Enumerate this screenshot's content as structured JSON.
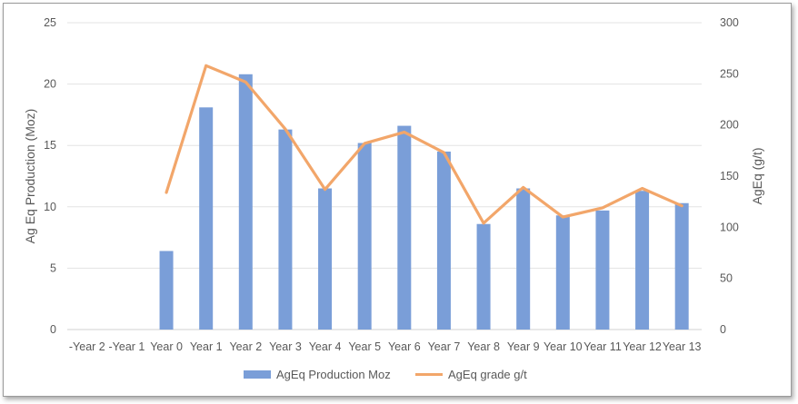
{
  "chart_data": {
    "type": "bar",
    "categories": [
      "-Year 2",
      "-Year 1",
      "Year 0",
      "Year 1",
      "Year 2",
      "Year 3",
      "Year 4",
      "Year 5",
      "Year 6",
      "Year 7",
      "Year 8",
      "Year 9",
      "Year 10",
      "Year 11",
      "Year 12",
      "Year 13"
    ],
    "series": [
      {
        "name": "AgEq Production Moz",
        "type": "bar",
        "axis": "left",
        "color": "#7A9ED8",
        "values": [
          0,
          0,
          6.4,
          18.1,
          20.8,
          16.3,
          11.5,
          15.2,
          16.6,
          14.5,
          8.6,
          11.5,
          9.3,
          9.7,
          11.3,
          10.3
        ]
      },
      {
        "name": "AgEq grade g/t",
        "type": "line",
        "axis": "right",
        "color": "#F2A66A",
        "values": [
          null,
          null,
          134,
          258,
          242,
          196,
          137,
          182,
          193,
          173,
          104,
          139,
          110,
          119,
          138,
          121
        ]
      }
    ],
    "title": "",
    "ylabel": "Ag Eq Production (Moz)",
    "y2label": "AgEq (g/t)",
    "ylim": [
      0,
      25
    ],
    "y2lim": [
      0,
      300
    ],
    "yticks": [
      "0",
      "5",
      "10",
      "15",
      "20",
      "25"
    ],
    "y2ticks": [
      "0",
      "50",
      "100",
      "150",
      "200",
      "250",
      "300"
    ],
    "grid": true,
    "legend_position": "bottom"
  }
}
